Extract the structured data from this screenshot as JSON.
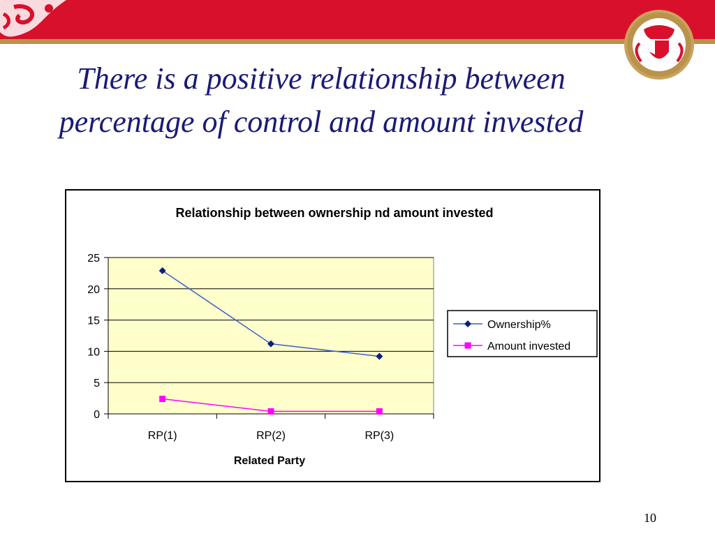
{
  "slide": {
    "title": "There is a positive relationship between percentage of control and amount invested",
    "page_number": "10",
    "colors": {
      "band": "#d8102c",
      "gold": "#b9924c",
      "title": "#1a1a78"
    },
    "icons": [
      "ornament-icon",
      "emblem-icon"
    ]
  },
  "chart_data": {
    "type": "line",
    "title": "Relationship between ownership nd amount invested",
    "xlabel": "Related Party",
    "ylabel": "",
    "categories": [
      "RP(1)",
      "RP(2)",
      "RP(3)"
    ],
    "ylim": [
      0,
      25
    ],
    "yticks": [
      0,
      5,
      10,
      15,
      20,
      25
    ],
    "grid": true,
    "plot_background": "#ffffcc",
    "legend_position": "right",
    "series": [
      {
        "name": "Ownership%",
        "values": [
          22.9,
          11.2,
          9.2
        ],
        "color": "#3a5fcd",
        "marker_color": "#0a1f7a",
        "marker": "diamond"
      },
      {
        "name": "Amount invested",
        "values": [
          2.4,
          0.4,
          0.4
        ],
        "color": "#ff00ff",
        "marker_color": "#ff00ff",
        "marker": "square"
      }
    ]
  }
}
